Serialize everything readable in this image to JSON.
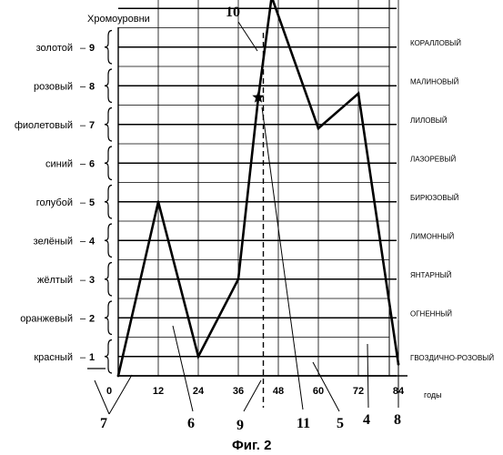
{
  "figure": {
    "caption": "Фиг. 2"
  },
  "chart_data": {
    "type": "line",
    "ylabel": "Хромоуровни",
    "xlabel": "годы",
    "x_ticks": [
      "0",
      "12",
      "24",
      "36",
      "48",
      "60",
      "72",
      "84"
    ],
    "x_range": [
      0,
      96
    ],
    "y_range": [
      0,
      9.8
    ],
    "levels": [
      {
        "name": "красный",
        "num": "1"
      },
      {
        "name": "оранжевый",
        "num": "2"
      },
      {
        "name": "жёлтый",
        "num": "3"
      },
      {
        "name": "зелёный",
        "num": "4"
      },
      {
        "name": "голубой",
        "num": "5"
      },
      {
        "name": "синий",
        "num": "6"
      },
      {
        "name": "фиолетовый",
        "num": "7"
      },
      {
        "name": "розовый",
        "num": "8"
      },
      {
        "name": "золотой",
        "num": "9"
      }
    ],
    "right_labels": [
      "ГВОЗДИЧНО-РОЗОВЫЙ",
      "ОГНЕННЫЙ",
      "ЯНТАРНЫЙ",
      "ЛИМОННЫЙ",
      "БИРЮЗОВЫЙ",
      "ЛАЗОРЕВЫЙ",
      "ЛИЛОВЫЙ",
      "МАЛИНОВЫЙ",
      "КОРАЛЛОВЫЙ"
    ],
    "series": [
      {
        "x": [
          0,
          12,
          24,
          36,
          42,
          46,
          60,
          72,
          84
        ],
        "y": [
          0,
          4.5,
          0.5,
          2.5,
          7.2,
          9.8,
          6.4,
          7.3,
          0.3
        ]
      }
    ],
    "marker": {
      "x": 42,
      "y": 7.2,
      "symbol": "star"
    },
    "dashed_line_x": 43.5,
    "reference_numerals": [
      "10",
      "11",
      "9",
      "7",
      "6",
      "5",
      "4",
      "8"
    ]
  }
}
